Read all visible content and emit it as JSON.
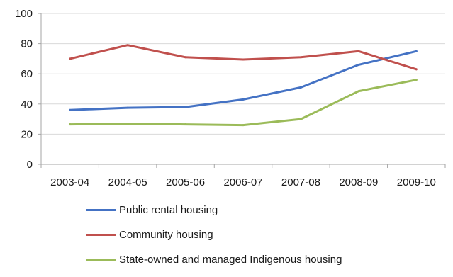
{
  "chart_data": {
    "type": "line",
    "categories": [
      "2003-04",
      "2004-05",
      "2005-06",
      "2006-07",
      "2007-08",
      "2008-09",
      "2009-10"
    ],
    "series": [
      {
        "name": "Public rental housing",
        "color": "#4472c4",
        "values": [
          36,
          37.5,
          38,
          43,
          51,
          66,
          75
        ]
      },
      {
        "name": "Community housing",
        "color": "#c0504d",
        "values": [
          70,
          79,
          71,
          69.5,
          71,
          75,
          63
        ]
      },
      {
        "name": "State-owned and managed Indigenous housing",
        "color": "#9bbb59",
        "values": [
          26.5,
          27,
          26.5,
          26,
          30,
          48.5,
          56
        ]
      }
    ],
    "yticks": [
      0,
      20,
      40,
      60,
      80,
      100
    ],
    "ylim": [
      0,
      100
    ],
    "grid": true,
    "legend_position": "bottom",
    "colors": {
      "grid": "#d9d9d9",
      "axis": "#a6a6a6"
    }
  }
}
